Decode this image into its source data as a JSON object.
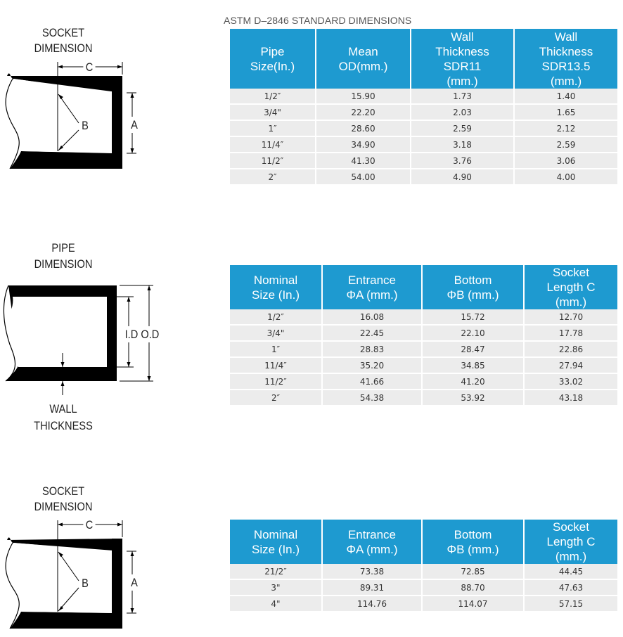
{
  "heading": "ASTM D–2846 STANDARD DIMENSIONS",
  "diagrams": {
    "socket_top": {
      "title_line1": "SOCKET",
      "title_line2": "DIMENSION",
      "c": "C",
      "b": "B",
      "a": "A"
    },
    "pipe": {
      "title_line1": "PIPE",
      "title_line2": "DIMENSION",
      "id_od": "I.D O.D",
      "wall_line1": "WALL",
      "wall_line2": "THICKNESS"
    },
    "socket_bottom": {
      "title_line1": "SOCKET",
      "title_line2": "DIMENSION",
      "c": "C",
      "b": "B",
      "a": "A"
    }
  },
  "table1": {
    "headers": [
      [
        "Pipe",
        "Size(In.)"
      ],
      [
        "Mean",
        "OD(mm.)"
      ],
      [
        "Wall",
        "Thickness",
        "SDR11",
        "(mm.)"
      ],
      [
        "Wall",
        "Thickness",
        "SDR13.5",
        "(mm.)"
      ]
    ],
    "rows": [
      [
        "1/2″",
        "15.90",
        "1.73",
        "1.40"
      ],
      [
        "3/4\"",
        "22.20",
        "2.03",
        "1.65"
      ],
      [
        "1″",
        "28.60",
        "2.59",
        "2.12"
      ],
      [
        "11/4″",
        "34.90",
        "3.18",
        "2.59"
      ],
      [
        "11/2″",
        "41.30",
        "3.76",
        "3.06"
      ],
      [
        "2″",
        "54.00",
        "4.90",
        "4.00"
      ]
    ]
  },
  "table2": {
    "headers": [
      [
        "Nominal",
        "Size (In.)"
      ],
      [
        "Entrance",
        "ΦA (mm.)"
      ],
      [
        "Bottom",
        "ΦB (mm.)"
      ],
      [
        "Socket",
        "Length C",
        "(mm.)"
      ]
    ],
    "rows": [
      [
        "1/2″",
        "16.08",
        "15.72",
        "12.70"
      ],
      [
        "3/4\"",
        "22.45",
        "22.10",
        "17.78"
      ],
      [
        "1″",
        "28.83",
        "28.47",
        "22.86"
      ],
      [
        "11/4″",
        "35.20",
        "34.85",
        "27.94"
      ],
      [
        "11/2″",
        "41.66",
        "41.20",
        "33.02"
      ],
      [
        "2″",
        "54.38",
        "53.92",
        "43.18"
      ]
    ]
  },
  "table3": {
    "headers": [
      [
        "Nominal",
        "Size (In.)"
      ],
      [
        "Entrance",
        "ΦA (mm.)"
      ],
      [
        "Bottom",
        "ΦB (mm.)"
      ],
      [
        "Socket",
        "Length C",
        "(mm.)"
      ]
    ],
    "rows": [
      [
        "21/2″",
        "73.38",
        "72.85",
        "44.45"
      ],
      [
        "3\"",
        "89.31",
        "88.70",
        "47.63"
      ],
      [
        "4\"",
        "114.76",
        "114.07",
        "57.15"
      ]
    ]
  }
}
